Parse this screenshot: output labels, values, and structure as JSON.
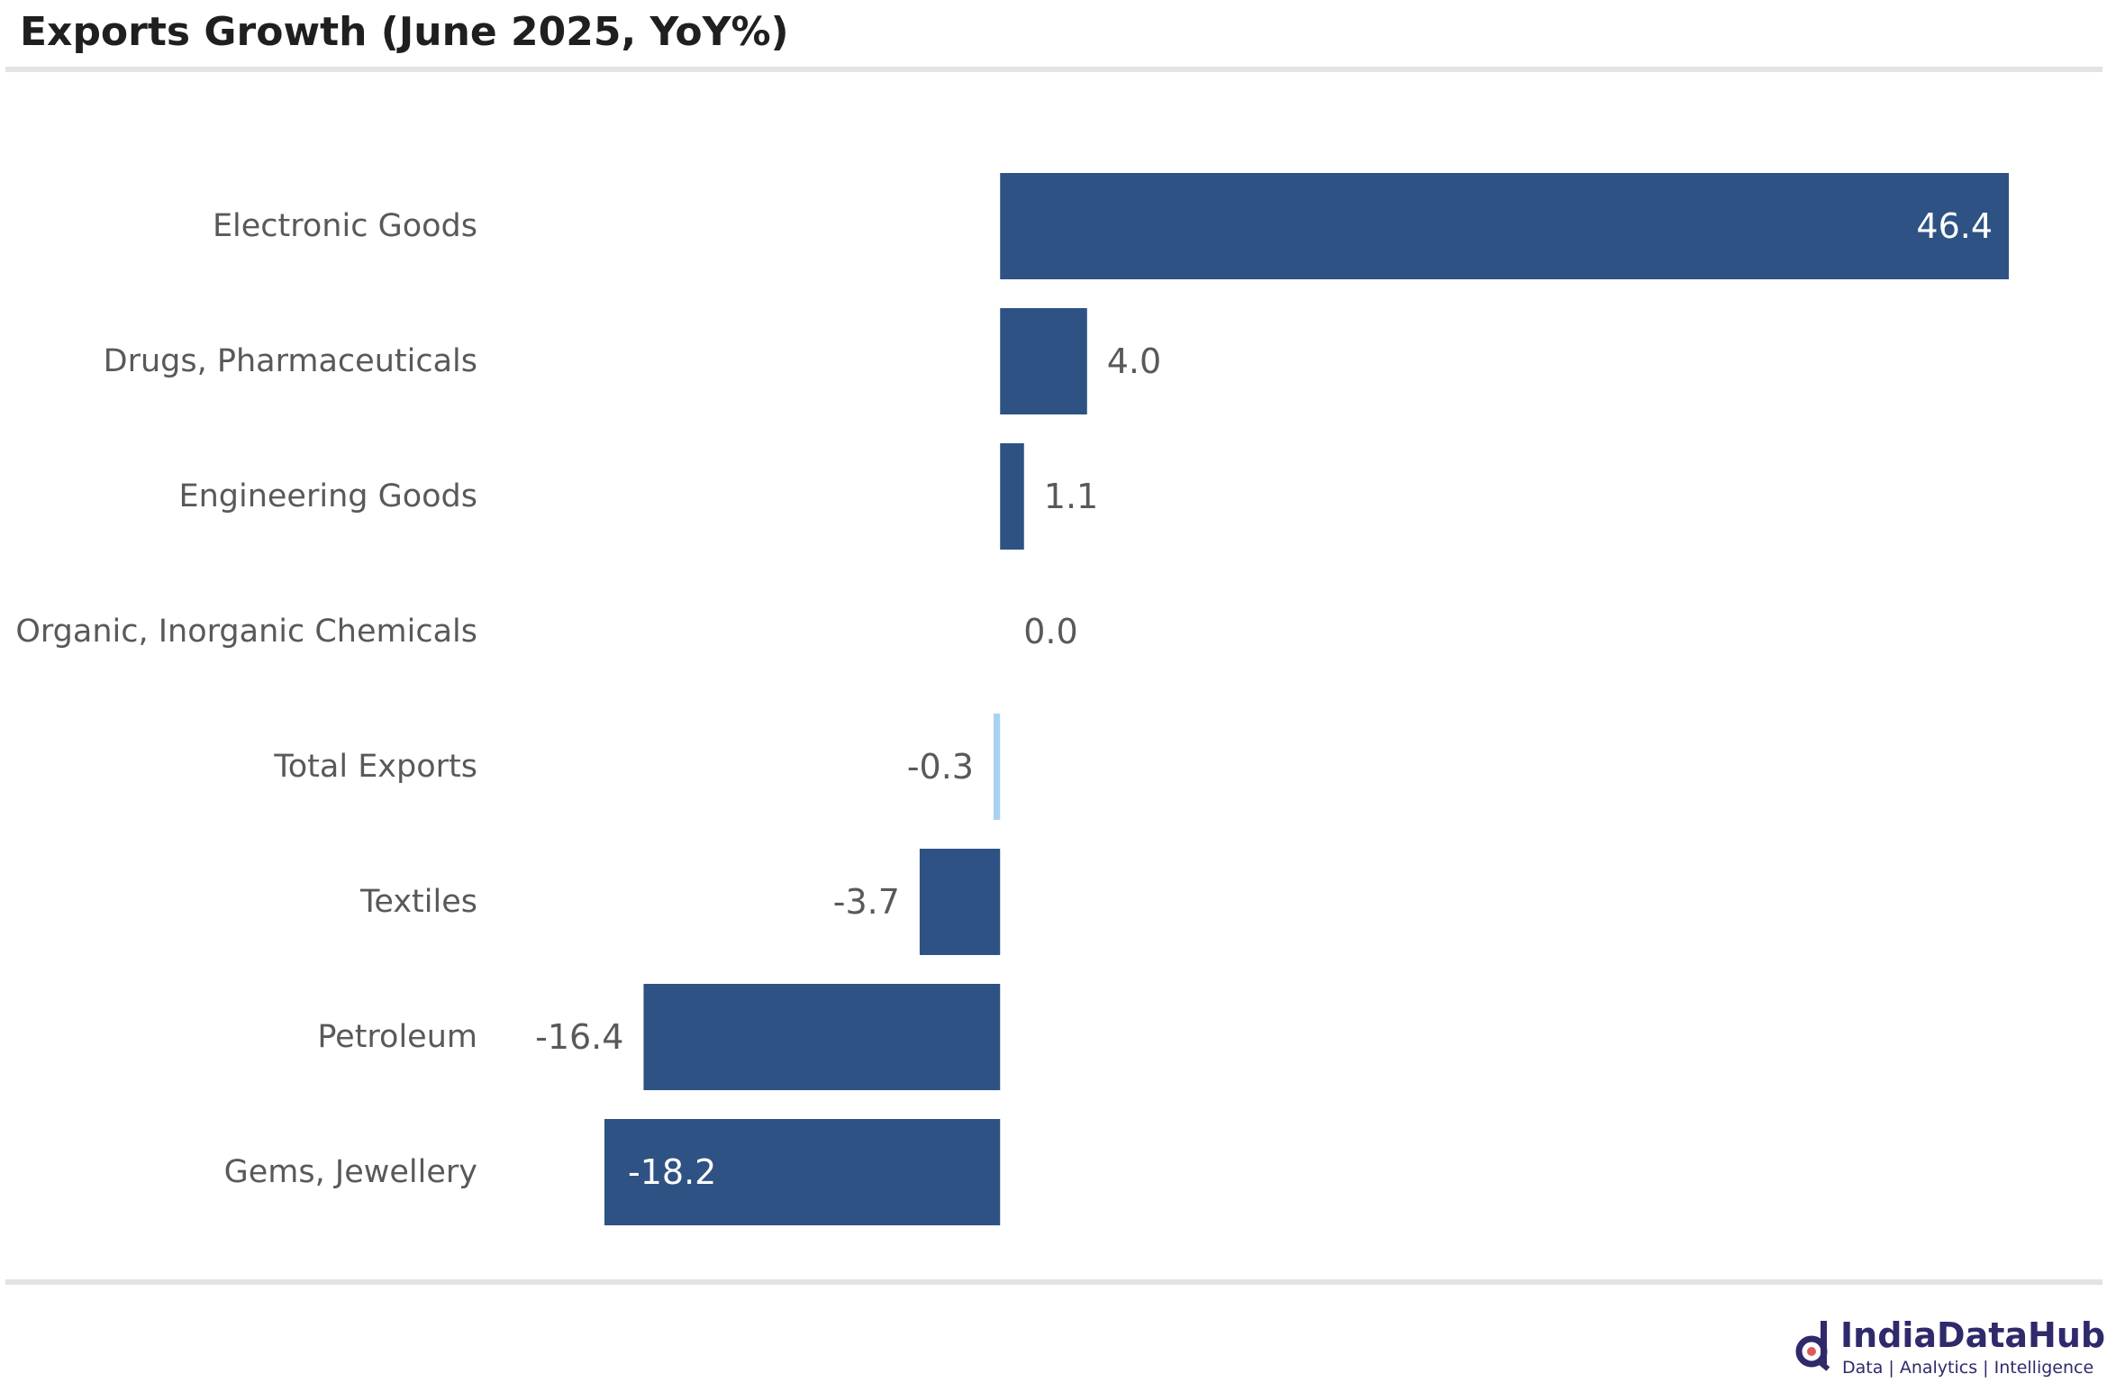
{
  "chart_data": {
    "type": "bar",
    "orientation": "horizontal",
    "title": "Exports Growth (June 2025, YoY%)",
    "xlabel": "",
    "ylabel": "",
    "categories": [
      "Electronic Goods",
      "Drugs, Pharmaceuticals",
      "Engineering Goods",
      "Organic, Inorganic Chemicals",
      "Total Exports",
      "Textiles",
      "Petroleum",
      "Gems, Jewellery"
    ],
    "values": [
      46.4,
      4.0,
      1.1,
      0.0,
      -0.3,
      -3.7,
      -16.4,
      -18.2
    ],
    "value_labels": [
      "46.4",
      "4.0",
      "1.1",
      "0.0",
      "-0.3",
      "-3.7",
      "-16.4",
      "-18.2"
    ],
    "label_inside": [
      true,
      false,
      false,
      false,
      false,
      false,
      false,
      true
    ],
    "highlight_category": "Total Exports",
    "xlim": [
      -18.2,
      46.4
    ],
    "grid": false,
    "legend": "none"
  },
  "colors": {
    "bar": "#2e5283",
    "highlight_bar": "#a9d2f0",
    "label_outside": "#595959",
    "label_inside": "#ffffff"
  },
  "branding": {
    "name": "IndiaDataHub",
    "tagline": "Data | Analytics | Intelligence"
  }
}
